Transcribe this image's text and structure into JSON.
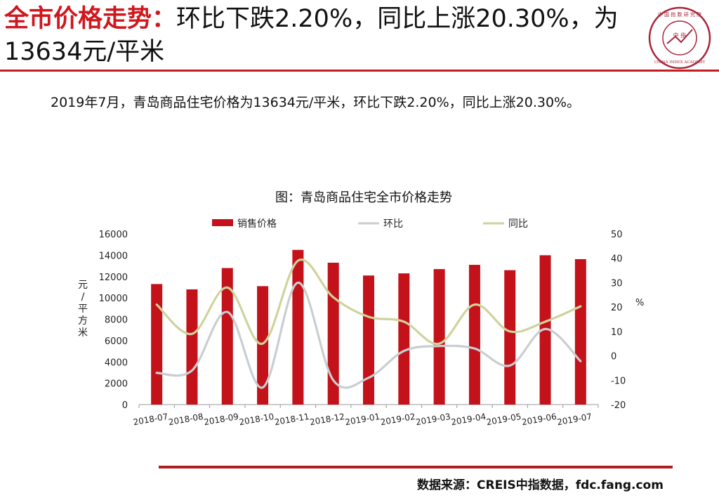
{
  "slide": {
    "title_accent": "全市价格走势：",
    "title_rest": "环比下跌2.20%，同比上涨20.30%，为13634元/平米",
    "summary": "2019年7月，青岛商品住宅价格为13634元/平米，环比下跌2.20%，同比上涨20.30%。",
    "source": "数据来源：CREIS中指数据，fdc.fang.com"
  },
  "logo": {
    "seal_text": "中 国 指 数 研 究 院",
    "center_text": "中 指",
    "ring_text": "CHINA INDEX ACADEMY"
  },
  "colors": {
    "brand_red": "#d0171d",
    "bar": "#c3121a",
    "mom_line": "#c9ced2",
    "yoy_line": "#cfd39c"
  },
  "chart_data": {
    "type": "bar",
    "title": "图：青岛商品住宅全市价格走势",
    "categories": [
      "2018-07",
      "2018-08",
      "2018-09",
      "2018-10",
      "2018-11",
      "2018-12",
      "2019-01",
      "2019-02",
      "2019-03",
      "2019-04",
      "2019-05",
      "2019-06",
      "2019-07"
    ],
    "ylabel": "元/平方米",
    "y2label": "%",
    "ylim": [
      0,
      16000
    ],
    "yticks": [
      "16000",
      "14000",
      "12000",
      "10000",
      "8000",
      "6000",
      "4000",
      "2000",
      "0"
    ],
    "y2lim": [
      -20,
      50
    ],
    "y2ticks": [
      "50",
      "40",
      "30",
      "20",
      "10",
      "0",
      "-10",
      "-20"
    ],
    "legend_position": "top",
    "series": [
      {
        "name": "销售价格",
        "kind": "bar",
        "axis": "left",
        "values": [
          11300,
          10800,
          12800,
          11100,
          14500,
          13300,
          12100,
          12300,
          12700,
          13100,
          12600,
          14000,
          13634
        ]
      },
      {
        "name": "环比",
        "kind": "line",
        "axis": "right",
        "values": [
          -7,
          -6,
          18,
          -13,
          30,
          -10,
          -9,
          2,
          4,
          3,
          -4,
          11,
          -2.2
        ]
      },
      {
        "name": "同比",
        "kind": "line",
        "axis": "right",
        "values": [
          21,
          9,
          28,
          5,
          39,
          24,
          16,
          14,
          5,
          21,
          10,
          14,
          20.3
        ]
      }
    ]
  }
}
